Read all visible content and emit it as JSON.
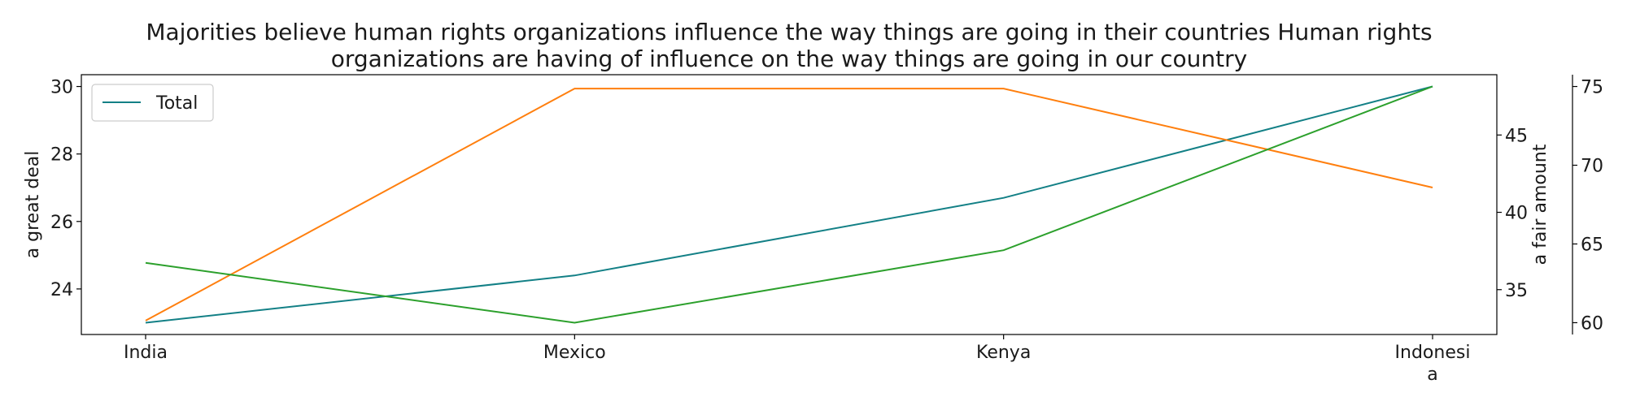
{
  "chart_data": {
    "type": "line",
    "title_lines": [
      "Majorities believe human rights organizations influence the way things are going in their countries Human rights",
      "organizations are having of influence on the way things are going in our country"
    ],
    "categories": [
      "India",
      "Mexico",
      "Kenya",
      "Indonesia"
    ],
    "category_tick_lines": [
      [
        "India"
      ],
      [
        "Mexico"
      ],
      [
        "Kenya"
      ],
      [
        "Indonesi",
        "a"
      ]
    ],
    "axes": {
      "left": {
        "label": "a great deal",
        "ylim": [
          22.65,
          30.35
        ],
        "ticks": [
          24,
          26,
          28,
          30
        ]
      },
      "right1": {
        "label": "a fair amount",
        "ylim": [
          32.1,
          48.9
        ],
        "ticks": [
          35,
          40,
          45
        ]
      },
      "right2": {
        "label": "",
        "ylim": [
          59.25,
          75.75
        ],
        "ticks": [
          60,
          65,
          70,
          75
        ]
      }
    },
    "series": [
      {
        "name": "Total",
        "axis": "left",
        "color": "#138086",
        "values": [
          23,
          24.4,
          26.7,
          30
        ]
      },
      {
        "name": "",
        "axis": "right1",
        "color": "#ff7f0e",
        "values": [
          33,
          48,
          48,
          41.6
        ]
      },
      {
        "name": "",
        "axis": "right2",
        "color": "#2ca02c",
        "values": [
          63.8,
          60,
          64.6,
          75
        ]
      }
    ],
    "legend": {
      "position": "top-left",
      "entries": [
        "Total"
      ]
    },
    "grid": false
  }
}
